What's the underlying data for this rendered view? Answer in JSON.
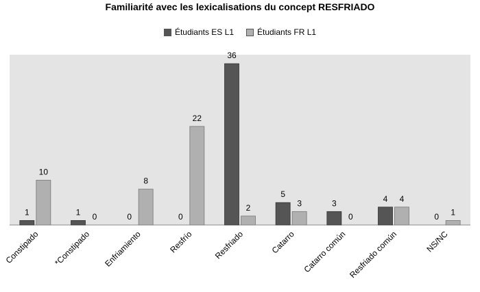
{
  "chart_data": {
    "type": "bar",
    "title": "Familiarité avec les lexicalisations du concept RESFRIADO",
    "xlabel": "",
    "ylabel": "",
    "ylim": [
      0,
      38
    ],
    "grid": false,
    "legend_position": "top",
    "categories": [
      "Constipado",
      "*Constipado",
      "Enfriamiento",
      "Resfrío",
      "Resfriado",
      "Catarro",
      "Catarro común",
      "Resfriado común",
      "NS/NC"
    ],
    "series": [
      {
        "name": "Étudiants ES L1",
        "color": "#555555",
        "values": [
          1,
          1,
          0,
          0,
          36,
          5,
          3,
          4,
          0
        ]
      },
      {
        "name": "Étudiants FR L1",
        "color": "#b0b0b0",
        "values": [
          10,
          0,
          8,
          22,
          2,
          3,
          0,
          4,
          1
        ]
      }
    ],
    "plot_background": "#e4e4e4"
  }
}
